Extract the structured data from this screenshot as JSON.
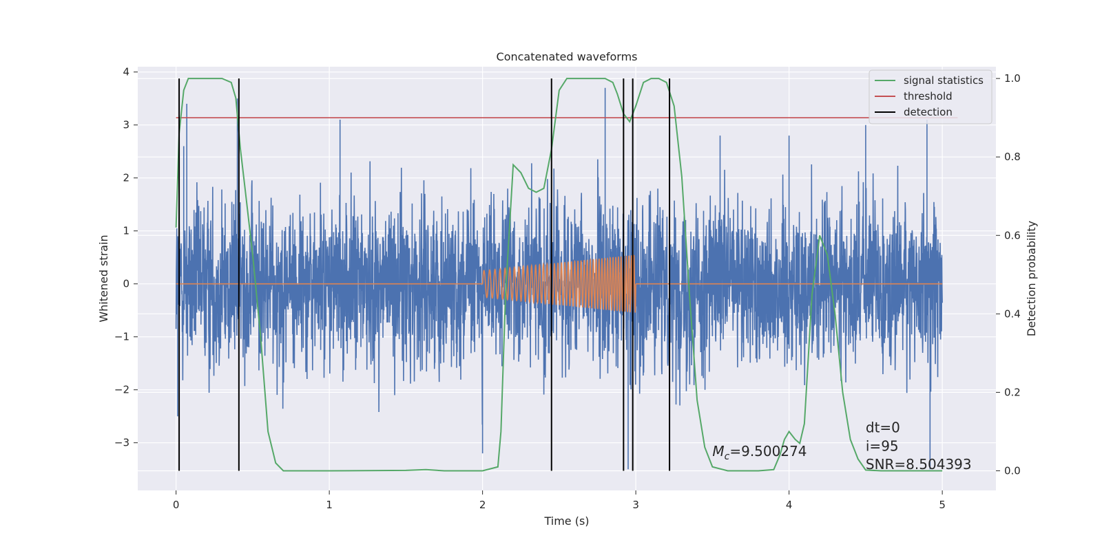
{
  "chart_data": {
    "type": "line",
    "title": "Concatenated waveforms",
    "xlabel": "Time (s)",
    "ylabel": "Whitened strain",
    "ylabel_right": "Detection probability",
    "xlim": [
      -0.25,
      5.35
    ],
    "ylim": [
      -3.9,
      4.1
    ],
    "ylim_right": [
      -0.05,
      1.03
    ],
    "x_ticks": [
      0,
      1,
      2,
      3,
      4,
      5
    ],
    "x_tick_labels": [
      "0",
      "1",
      "2",
      "3",
      "4",
      "5"
    ],
    "y_ticks": [
      4,
      3,
      2,
      1,
      0,
      -1,
      -2,
      -3
    ],
    "y_tick_labels": [
      "4",
      "3",
      "2",
      "1",
      "0",
      "−1",
      "−2",
      "−3"
    ],
    "y_right_ticks": [
      1.0,
      0.8,
      0.6,
      0.4,
      0.2,
      0.0
    ],
    "y_right_tick_labels": [
      "1.0",
      "0.8",
      "0.6",
      "0.4",
      "0.2",
      "0.0"
    ],
    "grid": true,
    "legend_position": "top-right",
    "legend": [
      "signal statistics",
      "threshold",
      "detection"
    ],
    "colors": {
      "strain": "#4c72b0",
      "injection": "#dd8452",
      "signal_statistics": "#55a868",
      "threshold": "#c44e52",
      "detection": "#000000",
      "axes_bg": "#eaeaf2",
      "grid": "#ffffff"
    },
    "strain": {
      "x_range": [
        0,
        5
      ],
      "typical_amplitude": 1.8,
      "spikes": [
        {
          "x": 0.01,
          "y": -2.5
        },
        {
          "x": 0.05,
          "y": 2.6
        },
        {
          "x": 0.07,
          "y": 3.4
        },
        {
          "x": 0.4,
          "y": 3.5
        },
        {
          "x": 1.07,
          "y": 3.1
        },
        {
          "x": 2.8,
          "y": 3.7
        },
        {
          "x": 2.95,
          "y": -3.5
        },
        {
          "x": 3.55,
          "y": 2.8
        },
        {
          "x": 4.0,
          "y": 2.8
        },
        {
          "x": 4.5,
          "y": 3.0
        },
        {
          "x": 4.9,
          "y": 3.1
        },
        {
          "x": 4.92,
          "y": -3.5
        },
        {
          "x": 2.0,
          "y": -3.2
        }
      ]
    },
    "injection": {
      "t_start": 2.0,
      "t_end": 3.0,
      "amp_start": 0.25,
      "amp_end": 0.55,
      "cycles": 44
    },
    "signal_statistics": {
      "x": [
        0,
        0.02,
        0.05,
        0.08,
        0.15,
        0.3,
        0.36,
        0.39,
        0.42,
        0.45,
        0.5,
        0.55,
        0.6,
        0.65,
        0.7,
        1.0,
        1.5,
        1.63,
        1.75,
        2.0,
        2.1,
        2.12,
        2.15,
        2.2,
        2.25,
        2.3,
        2.35,
        2.4,
        2.45,
        2.5,
        2.55,
        2.7,
        2.8,
        2.85,
        2.88,
        2.92,
        2.96,
        3.0,
        3.05,
        3.1,
        3.15,
        3.2,
        3.25,
        3.3,
        3.35,
        3.4,
        3.45,
        3.5,
        3.6,
        3.8,
        3.9,
        3.94,
        3.97,
        4.0,
        4.04,
        4.07,
        4.1,
        4.15,
        4.2,
        4.25,
        4.3,
        4.35,
        4.4,
        4.45,
        4.5,
        4.6,
        5.0
      ],
      "y": [
        0.62,
        0.86,
        0.97,
        1.0,
        1.0,
        1.0,
        0.99,
        0.95,
        0.82,
        0.72,
        0.55,
        0.35,
        0.1,
        0.02,
        0.0,
        0.0,
        0.001,
        0.003,
        0.0,
        0.0,
        0.01,
        0.1,
        0.45,
        0.78,
        0.76,
        0.72,
        0.71,
        0.72,
        0.82,
        0.97,
        1.0,
        1.0,
        1.0,
        0.99,
        0.96,
        0.91,
        0.89,
        0.93,
        0.99,
        1.0,
        1.0,
        0.99,
        0.93,
        0.75,
        0.45,
        0.18,
        0.06,
        0.01,
        0.0,
        0.0,
        0.003,
        0.04,
        0.08,
        0.1,
        0.08,
        0.07,
        0.12,
        0.45,
        0.6,
        0.55,
        0.4,
        0.2,
        0.08,
        0.03,
        0.002,
        0.0,
        0.0
      ]
    },
    "threshold": {
      "x": [
        0,
        5.1
      ],
      "value": 0.9
    },
    "detections": [
      0.02,
      0.41,
      2.45,
      2.92,
      2.98,
      3.22
    ],
    "annotations": {
      "mc": {
        "prefix": "M",
        "sub": "c",
        "value": "=9.500274"
      },
      "dt": "dt=0",
      "i": "i=95",
      "snr": "SNR=8.504393"
    }
  }
}
